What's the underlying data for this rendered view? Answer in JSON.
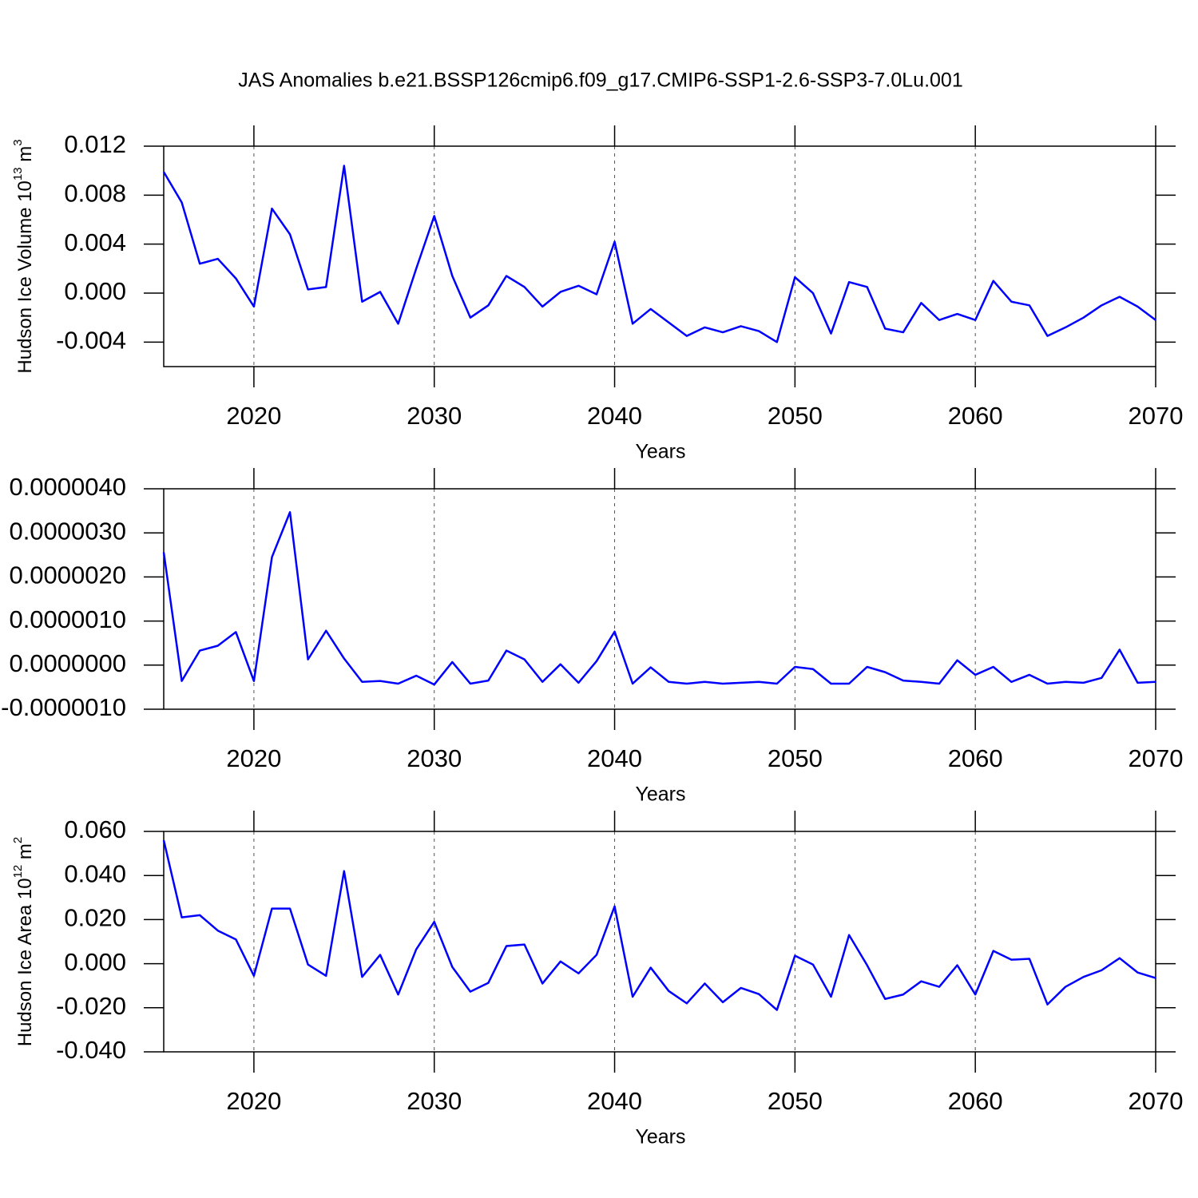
{
  "chart_data": [
    {
      "type": "line",
      "title": "JAS Anomalies b.e21.BSSP126cmip6.f09_g17.CMIP6-SSP1-2.6-SSP3-7.0Lu.001",
      "ylabel": {
        "text": "Hudson Ice Volume 10",
        "exp": "13",
        "unit": " m",
        "unit_exp": "3"
      },
      "xlabel": "Years",
      "x": [
        2015,
        2016,
        2017,
        2018,
        2019,
        2020,
        2021,
        2022,
        2023,
        2024,
        2025,
        2026,
        2027,
        2028,
        2029,
        2030,
        2031,
        2032,
        2033,
        2034,
        2035,
        2036,
        2037,
        2038,
        2039,
        2040,
        2041,
        2042,
        2043,
        2044,
        2045,
        2046,
        2047,
        2048,
        2049,
        2050,
        2051,
        2052,
        2053,
        2054,
        2055,
        2056,
        2057,
        2058,
        2059,
        2060,
        2061,
        2062,
        2063,
        2064,
        2065,
        2066,
        2067,
        2068,
        2069,
        2070
      ],
      "series": [
        {
          "color": "#0000ff",
          "values": [
            0.0099,
            0.0074,
            0.0024,
            0.0028,
            0.0012,
            -0.0011,
            0.0069,
            0.0048,
            0.0003,
            0.0005,
            0.0104,
            -0.0007,
            0.0001,
            -0.0025,
            0.002,
            0.0063,
            0.0014,
            -0.002,
            -0.001,
            0.0014,
            0.0005,
            -0.0011,
            0.0001,
            0.0006,
            -0.0001,
            0.0042,
            -0.0025,
            -0.0013,
            -0.0024,
            -0.0035,
            -0.0028,
            -0.0032,
            -0.0027,
            -0.0031,
            -0.004,
            0.0013,
            0,
            -0.0033,
            0.0009,
            0.0005,
            -0.0029,
            -0.0032,
            -0.0008,
            -0.0022,
            -0.0017,
            -0.0022,
            0.001,
            -0.0007,
            -0.001,
            -0.0035,
            -0.0028,
            -0.002,
            -0.001,
            -0.0003,
            -0.0011,
            -0.0022
          ]
        }
      ],
      "xlim": [
        2015,
        2070
      ],
      "xticks": [
        2020,
        2030,
        2040,
        2050,
        2060,
        2070
      ],
      "ylim": [
        -0.006,
        0.012
      ],
      "yticks": [
        0.012,
        0.008,
        0.004,
        {
          "value": 0,
          "label": "0.000"
        },
        -0.004
      ],
      "grid": true
    },
    {
      "type": "line",
      "xlabel": "Years",
      "x": [
        2015,
        2016,
        2017,
        2018,
        2019,
        2020,
        2021,
        2022,
        2023,
        2024,
        2025,
        2026,
        2027,
        2028,
        2029,
        2030,
        2031,
        2032,
        2033,
        2034,
        2035,
        2036,
        2037,
        2038,
        2039,
        2040,
        2041,
        2042,
        2043,
        2044,
        2045,
        2046,
        2047,
        2048,
        2049,
        2050,
        2051,
        2052,
        2053,
        2054,
        2055,
        2056,
        2057,
        2058,
        2059,
        2060,
        2061,
        2062,
        2063,
        2064,
        2065,
        2066,
        2067,
        2068,
        2069,
        2070
      ],
      "series": [
        {
          "color": "#0000ff",
          "values": [
            2.56e-06,
            -3.6e-07,
            3.3e-07,
            4.4e-07,
            7.5e-07,
            -3.6e-07,
            2.45e-06,
            3.47e-06,
            1.3e-07,
            7.8e-07,
            1.5e-07,
            -3.8e-07,
            -3.6e-07,
            -4.2e-07,
            -2.4e-07,
            -4.4e-07,
            7e-08,
            -4.2e-07,
            -3.5e-07,
            3.3e-07,
            1.3e-07,
            -3.8e-07,
            2e-08,
            -4e-07,
            9e-08,
            7.6e-07,
            -4.2e-07,
            -5e-08,
            -3.8e-07,
            -4.2e-07,
            -3.8e-07,
            -4.2e-07,
            -4e-07,
            -3.8e-07,
            -4.2e-07,
            -4e-08,
            -9e-08,
            -4.2e-07,
            -4.2e-07,
            -4e-08,
            -1.6e-07,
            -3.5e-07,
            -3.8e-07,
            -4.2e-07,
            1.1e-07,
            -2.2e-07,
            -4e-08,
            -3.8e-07,
            -2.2e-07,
            -4.2e-07,
            -3.8e-07,
            -4e-07,
            -2.9e-07,
            3.5e-07,
            -4e-07,
            -3.8e-07
          ]
        }
      ],
      "xlim": [
        2015,
        2070
      ],
      "xticks": [
        2020,
        2030,
        2040,
        2050,
        2060,
        2070
      ],
      "ylim": [
        -1e-06,
        4e-06
      ],
      "yticks": [
        {
          "value": 4e-06,
          "label": "0.0000040"
        },
        {
          "value": 3e-06,
          "label": "0.0000030"
        },
        {
          "value": 2e-06,
          "label": "0.0000020"
        },
        {
          "value": 1e-06,
          "label": "0.0000010"
        },
        {
          "value": 0,
          "label": "0.0000000"
        },
        {
          "value": -1e-06,
          "label": "-0.0000010"
        }
      ],
      "grid": true
    },
    {
      "type": "line",
      "ylabel": {
        "text": "Hudson Ice Area 10",
        "exp": "12",
        "unit": " m",
        "unit_exp": "2"
      },
      "xlabel": "Years",
      "x": [
        2015,
        2016,
        2017,
        2018,
        2019,
        2020,
        2021,
        2022,
        2023,
        2024,
        2025,
        2026,
        2027,
        2028,
        2029,
        2030,
        2031,
        2032,
        2033,
        2034,
        2035,
        2036,
        2037,
        2038,
        2039,
        2040,
        2041,
        2042,
        2043,
        2044,
        2045,
        2046,
        2047,
        2048,
        2049,
        2050,
        2051,
        2052,
        2053,
        2054,
        2055,
        2056,
        2057,
        2058,
        2059,
        2060,
        2061,
        2062,
        2063,
        2064,
        2065,
        2066,
        2067,
        2068,
        2069,
        2070
      ],
      "series": [
        {
          "color": "#0000ff",
          "values": [
            0.056,
            0.021,
            0.022,
            0.015,
            0.011,
            -0.0055,
            0.025,
            0.025,
            -0.0004,
            -0.0055,
            0.042,
            -0.006,
            0.004,
            -0.014,
            0.0065,
            0.019,
            -0.0015,
            -0.0127,
            -0.0087,
            0.008,
            0.0087,
            -0.009,
            0.001,
            -0.0044,
            0.004,
            0.026,
            -0.015,
            -0.0018,
            -0.0124,
            -0.018,
            -0.009,
            -0.0175,
            -0.011,
            -0.0138,
            -0.021,
            0.0036,
            -0.0004,
            -0.015,
            0.013,
            -0.0007,
            -0.016,
            -0.014,
            -0.008,
            -0.0105,
            -0.0007,
            -0.014,
            0.0058,
            0.0018,
            0.0022,
            -0.0185,
            -0.0105,
            -0.006,
            -0.003,
            0.0025,
            -0.004,
            -0.0065
          ]
        }
      ],
      "xlim": [
        2015,
        2070
      ],
      "xticks": [
        2020,
        2030,
        2040,
        2050,
        2060,
        2070
      ],
      "ylim": [
        -0.04,
        0.06
      ],
      "yticks": [
        {
          "value": 0.06,
          "label": "0.060"
        },
        {
          "value": 0.04,
          "label": "0.040"
        },
        {
          "value": 0.02,
          "label": "0.020"
        },
        {
          "value": 0,
          "label": "0.000"
        },
        {
          "value": -0.02,
          "label": "-0.020"
        },
        {
          "value": -0.04,
          "label": "-0.040"
        }
      ],
      "grid": true
    }
  ]
}
